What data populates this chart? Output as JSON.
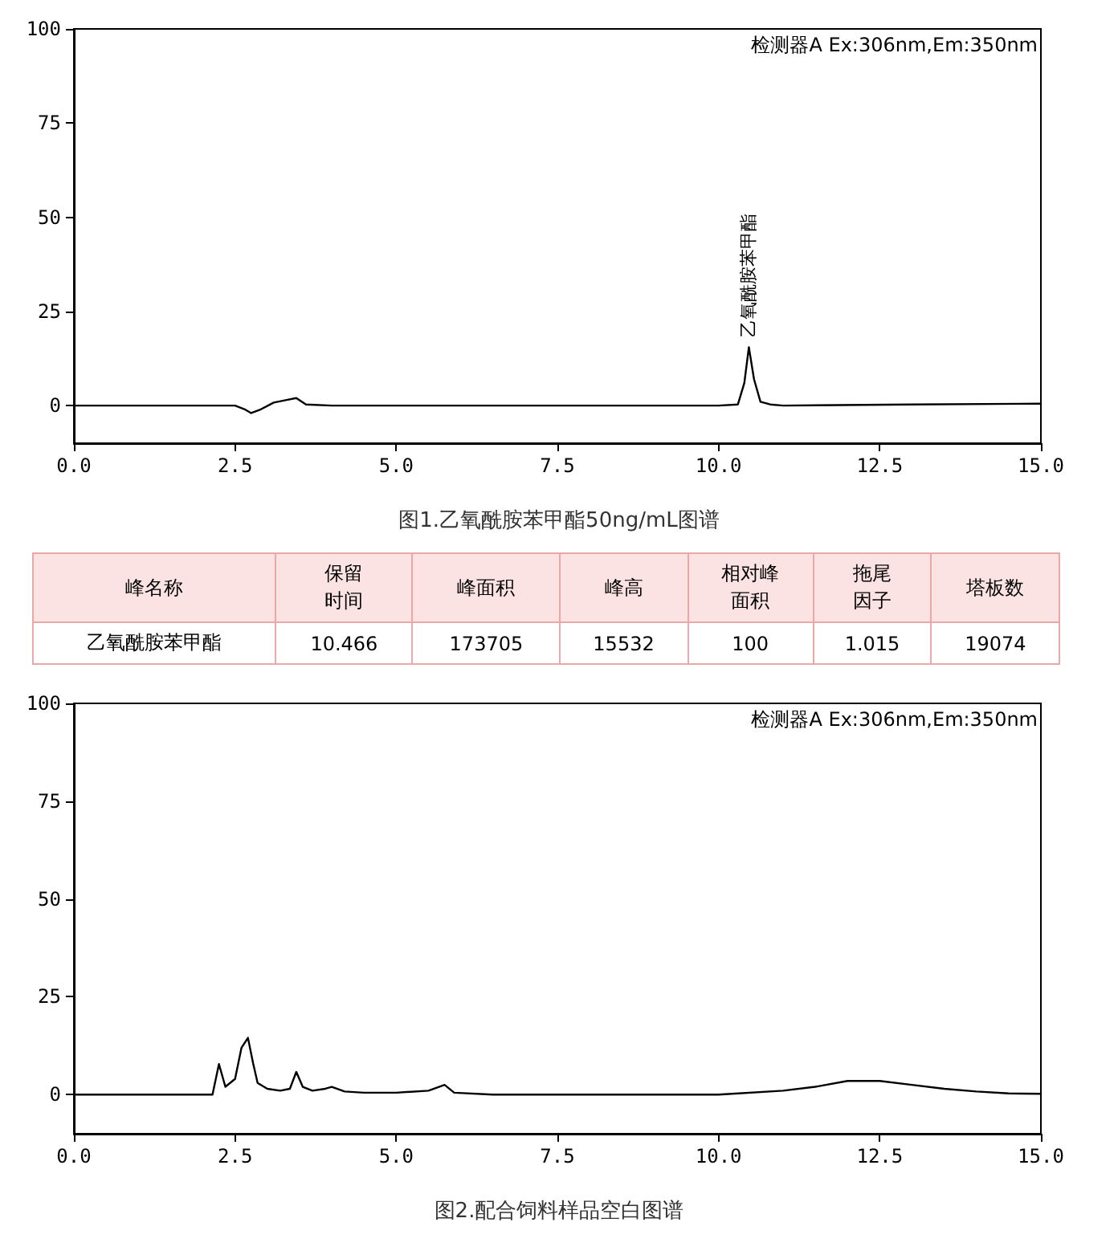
{
  "chart_data": [
    {
      "type": "line",
      "title": "图1.乙氧酰胺苯甲酯50ng/mL图谱",
      "marker": "none",
      "grid": false,
      "xlim": [
        0,
        15
      ],
      "xticks": [
        {
          "value": 0,
          "label": "0.0"
        },
        {
          "value": 2.5,
          "label": "2.5"
        },
        {
          "value": 5,
          "label": "5.0"
        },
        {
          "value": 7.5,
          "label": "7.5"
        },
        {
          "value": 10,
          "label": "10.0"
        },
        {
          "value": 12.5,
          "label": "12.5"
        },
        {
          "value": 15,
          "label": "15.0"
        }
      ],
      "ylim": [
        -10,
        100
      ],
      "yticks": [
        0,
        25,
        50,
        75,
        100
      ],
      "annotations": [
        "检测器A Ex:306nm,Em:350nm",
        {
          "text": "乙氧酰胺苯甲酯",
          "x": 10.47,
          "y": 15.5
        }
      ],
      "series": [
        {
          "color": "#000000",
          "x": [
            0,
            2.5,
            2.65,
            2.75,
            2.9,
            3.1,
            3.3,
            3.45,
            3.6,
            4,
            6,
            8,
            10,
            10.3,
            10.4,
            10.47,
            10.55,
            10.65,
            10.8,
            11,
            13,
            15
          ],
          "values": [
            0,
            0,
            -1,
            -2,
            -1,
            0.8,
            1.5,
            2,
            0.3,
            0,
            0,
            0,
            0,
            0.3,
            6,
            15.5,
            7,
            1,
            0.3,
            0,
            0.3,
            0.5
          ]
        }
      ]
    },
    {
      "type": "other",
      "categories": [
        "峰名称",
        "保留时间",
        "峰面积",
        "峰高",
        "相对峰面积",
        "拖尾因子",
        "塔板数"
      ],
      "value_labels": [
        "乙氧酰胺苯甲酯",
        "10.466",
        "173705",
        "15532",
        "100",
        "1.015",
        "19074"
      ]
    },
    {
      "type": "line",
      "title": "图2.配合饲料样品空白图谱",
      "marker": "none",
      "grid": false,
      "xlim": [
        0,
        15
      ],
      "xticks": [
        {
          "value": 0,
          "label": "0.0"
        },
        {
          "value": 2.5,
          "label": "2.5"
        },
        {
          "value": 5,
          "label": "5.0"
        },
        {
          "value": 7.5,
          "label": "7.5"
        },
        {
          "value": 10,
          "label": "10.0"
        },
        {
          "value": 12.5,
          "label": "12.5"
        },
        {
          "value": 15,
          "label": "15.0"
        }
      ],
      "ylim": [
        -10,
        100
      ],
      "yticks": [
        0,
        25,
        50,
        75,
        100
      ],
      "annotations": [
        "检测器A Ex:306nm,Em:350nm"
      ],
      "series": [
        {
          "color": "#000000",
          "x": [
            0,
            2.15,
            2.25,
            2.35,
            2.5,
            2.6,
            2.7,
            2.78,
            2.85,
            3.0,
            3.2,
            3.35,
            3.45,
            3.55,
            3.7,
            3.9,
            4.0,
            4.2,
            4.5,
            5.0,
            5.5,
            5.75,
            5.9,
            6.5,
            8,
            10,
            11,
            11.5,
            12,
            12.5,
            13,
            13.5,
            14,
            14.5,
            15
          ],
          "values": [
            0,
            0,
            7.8,
            2,
            4,
            12,
            14.5,
            8,
            3,
            1.5,
            1,
            1.5,
            5.8,
            2,
            1,
            1.5,
            2,
            0.8,
            0.5,
            0.5,
            1,
            2.5,
            0.5,
            0,
            0,
            0,
            1,
            2,
            3.5,
            3.5,
            2.5,
            1.5,
            0.8,
            0.3,
            0.2
          ]
        }
      ]
    }
  ]
}
